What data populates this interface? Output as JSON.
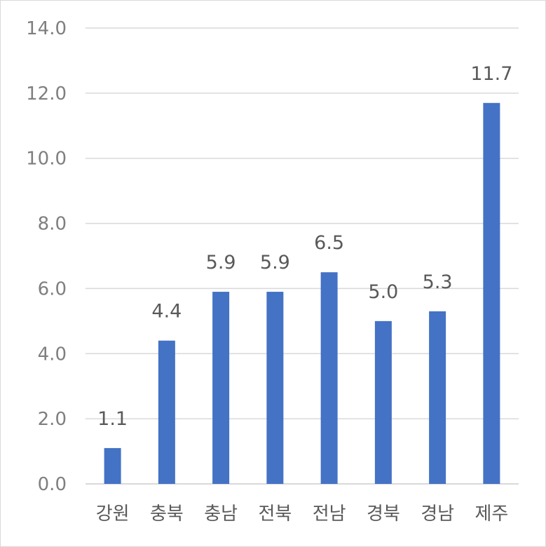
{
  "chart_data": {
    "type": "bar",
    "categories": [
      "강원",
      "충북",
      "충남",
      "전북",
      "전남",
      "경북",
      "경남",
      "제주"
    ],
    "values": [
      1.1,
      4.4,
      5.9,
      5.9,
      6.5,
      5.0,
      5.3,
      11.7
    ],
    "value_labels": [
      "1.1",
      "4.4",
      "5.9",
      "5.9",
      "6.5",
      "5.0",
      "5.3",
      "11.7"
    ],
    "ylim": [
      0,
      14
    ],
    "yticks": [
      0,
      2,
      4,
      6,
      8,
      10,
      12,
      14
    ],
    "ytick_labels": [
      "0.0",
      "2.0",
      "4.0",
      "6.0",
      "8.0",
      "10.0",
      "12.0",
      "14.0"
    ],
    "title": "",
    "xlabel": "",
    "ylabel": "",
    "grid": true,
    "legend": "none",
    "bar_color": "#4472c4",
    "grid_color": "#d9d9d9"
  }
}
